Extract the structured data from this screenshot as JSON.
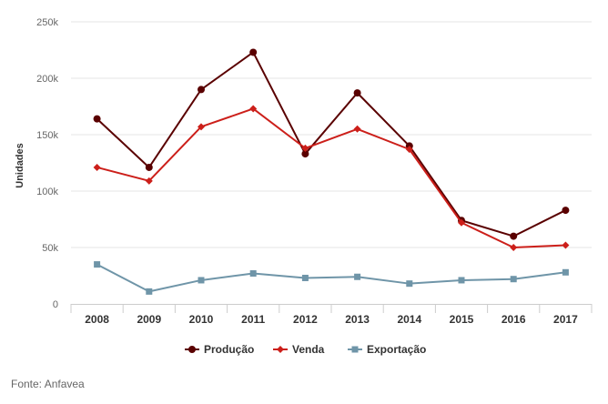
{
  "chart_data": {
    "type": "line",
    "categories": [
      "2008",
      "2009",
      "2010",
      "2011",
      "2012",
      "2013",
      "2014",
      "2015",
      "2016",
      "2017"
    ],
    "ylabel": "Unidades",
    "ylim": [
      0,
      250000
    ],
    "yticks": [
      0,
      50000,
      100000,
      150000,
      200000,
      250000
    ],
    "ytick_labels": [
      "0",
      "50k",
      "100k",
      "150k",
      "200k",
      "250k"
    ],
    "grid": "horizontal",
    "legend": "bottom",
    "series": [
      {
        "name": "Produção",
        "color": "#5a0000",
        "marker": "circle",
        "values": [
          164000,
          121000,
          190000,
          223000,
          133000,
          187000,
          140000,
          74000,
          60000,
          83000
        ]
      },
      {
        "name": "Venda",
        "color": "#cc1f1a",
        "marker": "diamond",
        "values": [
          121000,
          109000,
          157000,
          173000,
          138000,
          155000,
          137000,
          72000,
          50000,
          52000
        ]
      },
      {
        "name": "Exportação",
        "color": "#6f95a8",
        "marker": "square",
        "values": [
          35000,
          11000,
          21000,
          27000,
          23000,
          24000,
          18000,
          21000,
          22000,
          28000
        ]
      }
    ]
  },
  "source": "Fonte: Anfavea"
}
